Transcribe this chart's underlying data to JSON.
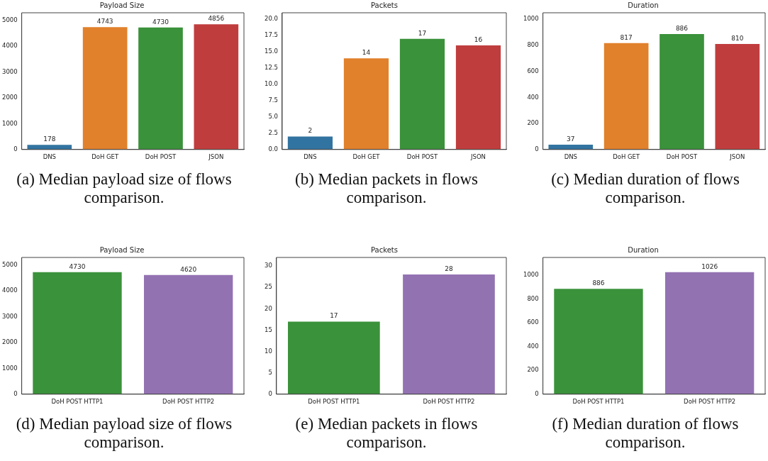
{
  "chart_data": [
    {
      "type": "bar",
      "title": "Payload Size",
      "categories": [
        "DNS",
        "DoH GET",
        "DoH POST",
        "JSON"
      ],
      "values": [
        178,
        4743,
        4730,
        4856
      ],
      "colors": [
        "#3274a1",
        "#e1812c",
        "#3a923a",
        "#c03d3e"
      ],
      "ylim": [
        0,
        5300
      ],
      "yticks": [
        0,
        1000,
        2000,
        3000,
        4000,
        5000
      ],
      "data_labels": true,
      "annotations": [
        "(a) Median payload size of flows comparison."
      ]
    },
    {
      "type": "bar",
      "title": "Packets",
      "categories": [
        "DNS",
        "DoH GET",
        "DoH POST",
        "JSON"
      ],
      "values": [
        2,
        14,
        17,
        16
      ],
      "colors": [
        "#3274a1",
        "#e1812c",
        "#3a923a",
        "#c03d3e"
      ],
      "ylim": [
        0,
        21
      ],
      "yticks": [
        {
          "value": 0,
          "label": "0.0"
        },
        2.5,
        {
          "value": 5,
          "label": "5.0"
        },
        7.5,
        {
          "value": 10,
          "label": "10.0"
        },
        12.5,
        {
          "value": 15,
          "label": "15.0"
        },
        17.5,
        {
          "value": 20,
          "label": "20.0"
        }
      ],
      "data_labels": true,
      "annotations": [
        "(b) Median packets in flows comparison."
      ]
    },
    {
      "type": "bar",
      "title": "Duration",
      "categories": [
        "DNS",
        "DoH GET",
        "DoH POST",
        "JSON"
      ],
      "values": [
        37,
        817,
        886,
        810
      ],
      "colors": [
        "#3274a1",
        "#e1812c",
        "#3a923a",
        "#c03d3e"
      ],
      "ylim": [
        0,
        1050
      ],
      "yticks": [
        0,
        200,
        400,
        600,
        800,
        1000
      ],
      "data_labels": true,
      "annotations": [
        "(c) Median duration of flows comparison."
      ]
    },
    {
      "type": "bar",
      "title": "Payload Size",
      "categories": [
        "DoH POST HTTP1",
        "DoH POST HTTP2"
      ],
      "values": [
        4730,
        4620
      ],
      "colors": [
        "#3a923a",
        "#9372b2"
      ],
      "ylim": [
        0,
        5300
      ],
      "yticks": [
        0,
        1000,
        2000,
        3000,
        4000,
        5000
      ],
      "data_labels": true,
      "annotations": [
        "(d) Median payload size of flows comparison."
      ]
    },
    {
      "type": "bar",
      "title": "Packets",
      "categories": [
        "DoH POST HTTP1",
        "DoH POST HTTP2"
      ],
      "values": [
        17,
        28
      ],
      "colors": [
        "#3a923a",
        "#9372b2"
      ],
      "ylim": [
        0,
        32
      ],
      "yticks": [
        0,
        5,
        10,
        15,
        20,
        25,
        30
      ],
      "data_labels": true,
      "annotations": [
        "(e) Median packets in flows comparison."
      ]
    },
    {
      "type": "bar",
      "title": "Duration",
      "categories": [
        "DoH POST HTTP1",
        "DoH POST HTTP2"
      ],
      "values": [
        886,
        1026
      ],
      "colors": [
        "#3a923a",
        "#9372b2"
      ],
      "ylim": [
        0,
        1150
      ],
      "yticks": [
        0,
        200,
        400,
        600,
        800,
        1000
      ],
      "data_labels": true,
      "annotations": [
        "(f) Median duration of flows comparison."
      ]
    }
  ]
}
